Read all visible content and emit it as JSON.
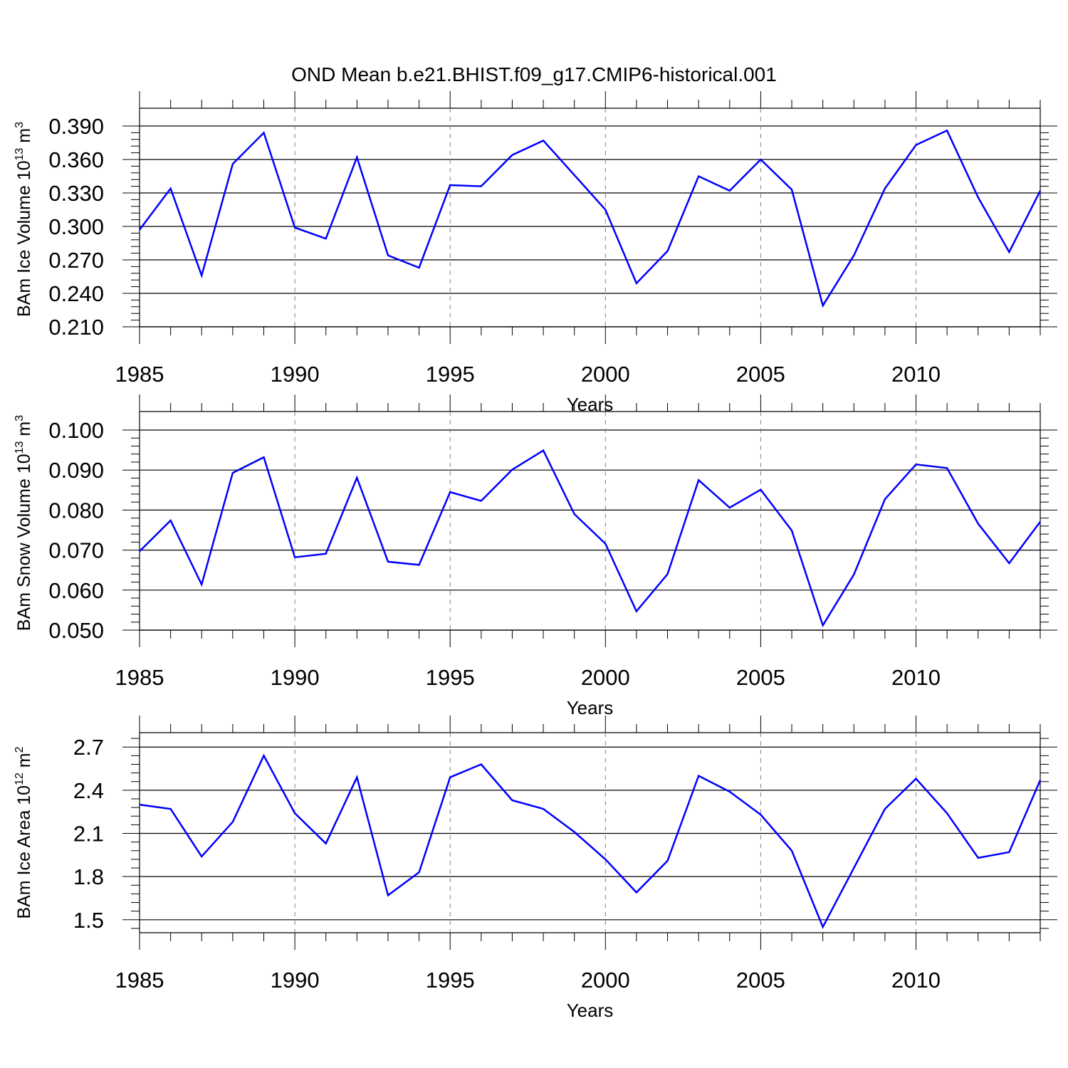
{
  "title": "OND Mean b.e21.BHIST.f09_g17.CMIP6-historical.001",
  "colors": {
    "line": "#0000ff",
    "axis": "#000000",
    "grid": "#808080",
    "background": "#ffffff"
  },
  "chart_data": [
    {
      "type": "line",
      "ylabel": {
        "prefix": "BAm Ice Volume 10",
        "exp": "13",
        "unit": " m",
        "unit_exp": "3"
      },
      "xlabel": "Years",
      "xlim": [
        1985,
        2014
      ],
      "ylim": [
        0.21,
        0.39
      ],
      "x_ticks": [
        1985,
        1990,
        1995,
        2000,
        2005,
        2010
      ],
      "x_tick_labels": [
        "1985",
        "1990",
        "1995",
        "2000",
        "2005",
        "2010"
      ],
      "y_ticks": [
        0.21,
        0.24,
        0.27,
        0.3,
        0.33,
        0.36,
        0.39
      ],
      "y_tick_labels": [
        "0.210",
        "0.240",
        "0.270",
        "0.300",
        "0.330",
        "0.360",
        "0.390"
      ],
      "vertical_grid": "dashed at labeled years",
      "series": [
        {
          "x": [
            1985,
            1986,
            1987,
            1988,
            1989,
            1990,
            1991,
            1992,
            1993,
            1994,
            1995,
            1996,
            1997,
            1998,
            1999,
            2000,
            2001,
            2002,
            2003,
            2004,
            2005,
            2006,
            2007,
            2008,
            2009,
            2010,
            2011,
            2012,
            2013,
            2014
          ],
          "values": [
            0.297,
            0.334,
            0.256,
            0.356,
            0.384,
            0.299,
            0.289,
            0.362,
            0.274,
            0.263,
            0.337,
            0.336,
            0.364,
            0.377,
            0.346,
            0.315,
            0.249,
            0.278,
            0.345,
            0.332,
            0.36,
            0.333,
            0.229,
            0.274,
            0.334,
            0.373,
            0.386,
            0.326,
            0.277,
            0.332
          ]
        }
      ]
    },
    {
      "type": "line",
      "ylabel": {
        "prefix": "BAm Snow Volume 10",
        "exp": "13",
        "unit": " m",
        "unit_exp": "3"
      },
      "xlabel": "Years",
      "xlim": [
        1985,
        2014
      ],
      "ylim": [
        0.05,
        0.1
      ],
      "x_ticks": [
        1985,
        1990,
        1995,
        2000,
        2005,
        2010
      ],
      "x_tick_labels": [
        "1985",
        "1990",
        "1995",
        "2000",
        "2005",
        "2010"
      ],
      "y_ticks": [
        0.05,
        0.06,
        0.07,
        0.08,
        0.09,
        0.1
      ],
      "y_tick_labels": [
        "0.050",
        "0.060",
        "0.070",
        "0.080",
        "0.090",
        "0.100"
      ],
      "vertical_grid": "dashed at labeled years",
      "series": [
        {
          "x": [
            1985,
            1986,
            1987,
            1988,
            1989,
            1990,
            1991,
            1992,
            1993,
            1994,
            1995,
            1996,
            1997,
            1998,
            1999,
            2000,
            2001,
            2002,
            2003,
            2004,
            2005,
            2006,
            2007,
            2008,
            2009,
            2010,
            2011,
            2012,
            2013,
            2014
          ],
          "values": [
            0.0697,
            0.0774,
            0.0614,
            0.0893,
            0.0932,
            0.0682,
            0.0691,
            0.0881,
            0.0671,
            0.0663,
            0.0845,
            0.0823,
            0.0901,
            0.0949,
            0.079,
            0.0716,
            0.0547,
            0.064,
            0.0875,
            0.0806,
            0.0851,
            0.0749,
            0.0512,
            0.0639,
            0.0827,
            0.0914,
            0.0905,
            0.0766,
            0.0667,
            0.0771
          ]
        }
      ]
    },
    {
      "type": "line",
      "ylabel": {
        "prefix": "BAm Ice Area 10",
        "exp": "12",
        "unit": " m",
        "unit_exp": "2"
      },
      "xlabel": "Years",
      "xlim": [
        1985,
        2014
      ],
      "ylim": [
        1.41,
        2.8
      ],
      "x_ticks": [
        1985,
        1990,
        1995,
        2000,
        2005,
        2010
      ],
      "x_tick_labels": [
        "1985",
        "1990",
        "1995",
        "2000",
        "2005",
        "2010"
      ],
      "y_ticks": [
        1.5,
        1.8,
        2.1,
        2.4,
        2.7
      ],
      "y_tick_labels": [
        "1.5",
        "1.8",
        "2.1",
        "2.4",
        "2.7"
      ],
      "vertical_grid": "dashed at labeled years",
      "series": [
        {
          "x": [
            1985,
            1986,
            1987,
            1988,
            1989,
            1990,
            1991,
            1992,
            1993,
            1994,
            1995,
            1996,
            1997,
            1998,
            1999,
            2000,
            2001,
            2002,
            2003,
            2004,
            2005,
            2006,
            2007,
            2008,
            2009,
            2010,
            2011,
            2012,
            2013,
            2014
          ],
          "values": [
            2.3,
            2.27,
            1.94,
            2.18,
            2.64,
            2.24,
            2.03,
            2.49,
            1.67,
            1.83,
            2.49,
            2.58,
            2.33,
            2.27,
            2.11,
            1.92,
            1.69,
            1.91,
            2.5,
            2.39,
            2.23,
            1.98,
            1.45,
            1.86,
            2.27,
            2.48,
            2.24,
            1.93,
            1.97,
            2.47
          ]
        }
      ]
    }
  ]
}
